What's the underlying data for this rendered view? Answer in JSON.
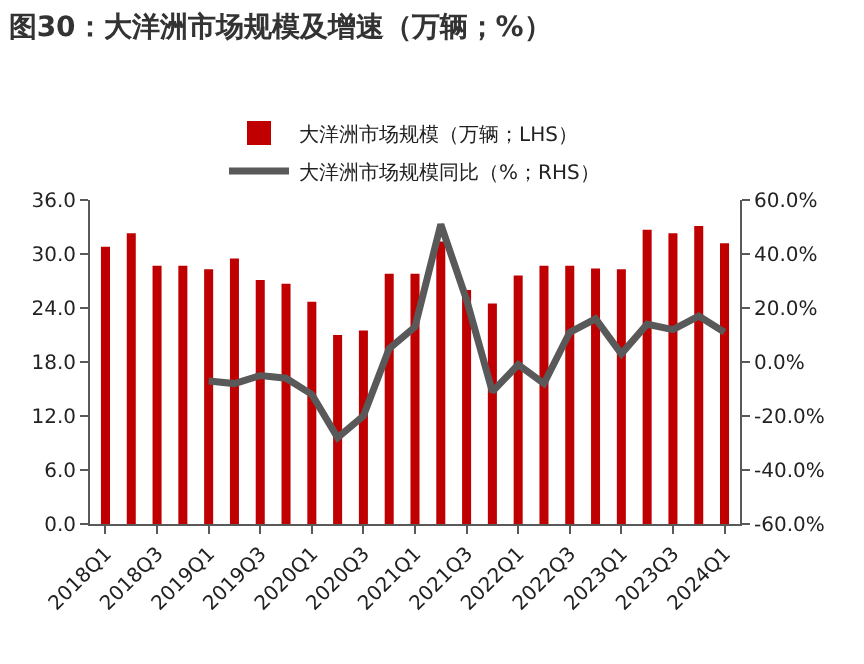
{
  "chart_data": {
    "type": "bar",
    "title": "图30：大洋洲市场规模及增速（万辆；%）",
    "categories": [
      "2018Q1",
      null,
      "2018Q3",
      null,
      "2019Q1",
      null,
      "2019Q3",
      null,
      "2020Q1",
      null,
      "2020Q3",
      null,
      "2021Q1",
      null,
      "2021Q3",
      null,
      "2022Q1",
      null,
      "2022Q3",
      null,
      "2023Q1",
      null,
      "2023Q3",
      null,
      "2024Q1"
    ],
    "series": [
      {
        "name": "大洋洲市场规模（万辆；LHS）",
        "color": "#c00000",
        "values": [
          30.8,
          32.3,
          28.7,
          28.7,
          28.3,
          29.5,
          27.1,
          26.7,
          24.7,
          21.0,
          21.5,
          27.8,
          27.8,
          31.4,
          26.0,
          24.5,
          27.6,
          28.7,
          28.7,
          28.4,
          28.3,
          32.7,
          32.3,
          33.1,
          31.2
        ]
      },
      {
        "name": "大洋洲市场规模同比（%；RHS）",
        "type": "line",
        "axis": "y2",
        "color": "#595959",
        "values": [
          null,
          null,
          null,
          null,
          -7,
          -8,
          -5,
          -6,
          -12,
          -28,
          -20,
          5,
          13,
          51,
          23,
          -11,
          -1,
          -8,
          11,
          16,
          3,
          14,
          12,
          17,
          11
        ]
      }
    ],
    "ylim": [
      0,
      36
    ],
    "yticks": [
      {
        "value": 0,
        "label": "0.0"
      },
      {
        "value": 6,
        "label": "6.0"
      },
      {
        "value": 12,
        "label": "12.0"
      },
      {
        "value": 18,
        "label": "18.0"
      },
      {
        "value": 24,
        "label": "24.0"
      },
      {
        "value": 30,
        "label": "30.0"
      },
      {
        "value": 36,
        "label": "36.0"
      }
    ],
    "y2lim": [
      -60,
      60
    ],
    "y2ticks": [
      {
        "value": -60,
        "label": "-60.0%"
      },
      {
        "value": -40,
        "label": "-40.0%"
      },
      {
        "value": -20,
        "label": "-20.0%"
      },
      {
        "value": 0,
        "label": "0.0%"
      },
      {
        "value": 20,
        "label": "20.0%"
      },
      {
        "value": 40,
        "label": "40.0%"
      },
      {
        "value": 60,
        "label": "60.0%"
      }
    ],
    "grid": false,
    "legend": "top",
    "marker": "none",
    "line_style": "solid"
  }
}
